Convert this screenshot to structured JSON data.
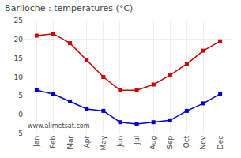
{
  "chart_data": {
    "type": "line",
    "title": "Bariloche : temperatures (°C)",
    "categories": [
      "Jan",
      "Feb",
      "Mar",
      "Apr",
      "May",
      "Jun",
      "Jul",
      "Aug",
      "Sep",
      "Oct",
      "Nov",
      "Dec"
    ],
    "series": [
      {
        "color": "#cc0000",
        "marker": "square",
        "values": [
          21.0,
          21.5,
          19.0,
          14.5,
          10.0,
          6.5,
          6.5,
          8.0,
          10.5,
          13.5,
          17.0,
          19.5
        ]
      },
      {
        "color": "#0000cc",
        "marker": "square",
        "values": [
          6.5,
          5.5,
          3.5,
          1.5,
          1.0,
          -2.0,
          -2.5,
          -2.0,
          -1.5,
          1.0,
          3.0,
          5.5
        ]
      }
    ],
    "ylim": [
      -5,
      25
    ],
    "yticks": [
      -5,
      0,
      5,
      10,
      15,
      20,
      25
    ],
    "grid": true,
    "annotations": [
      "www.allmetsat.com"
    ]
  }
}
